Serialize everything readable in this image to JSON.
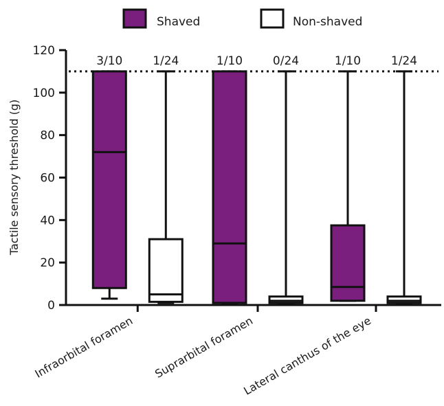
{
  "chart_data": {
    "type": "boxplot",
    "ylabel": "Tactile sensory threshold (g)",
    "ylim": [
      0,
      120
    ],
    "yticks": [
      "0",
      "20",
      "40",
      "60",
      "80",
      "100",
      "120"
    ],
    "reference_line": {
      "y": 110,
      "style": "dotted"
    },
    "categories": [
      "Infraorbital foramen",
      "Suprarbital foramen",
      "Lateral canthus of the eye"
    ],
    "legend": {
      "position": "top-center"
    },
    "series": [
      {
        "name": "Shaved",
        "color": "#7b1f7f",
        "boxes": [
          {
            "min": 3,
            "q1": 8,
            "median": 72,
            "q3": 110,
            "max": 110,
            "annotation": "3/10"
          },
          {
            "min": 1,
            "q1": 1,
            "median": 29,
            "q3": 110,
            "max": 110,
            "annotation": "1/10"
          },
          {
            "min": 2,
            "q1": 2,
            "median": 8.5,
            "q3": 37.5,
            "max": 110,
            "annotation": "1/10"
          }
        ]
      },
      {
        "name": "Non-shaved",
        "color": "#ffffff",
        "boxes": [
          {
            "min": 1,
            "q1": 1.5,
            "median": 5,
            "q3": 31,
            "max": 110,
            "annotation": "1/24"
          },
          {
            "min": 1,
            "q1": 1,
            "median": 2,
            "q3": 4,
            "max": 110,
            "annotation": "0/24"
          },
          {
            "min": 1,
            "q1": 1,
            "median": 2,
            "q3": 4,
            "max": 110,
            "annotation": "1/24"
          }
        ]
      }
    ]
  }
}
